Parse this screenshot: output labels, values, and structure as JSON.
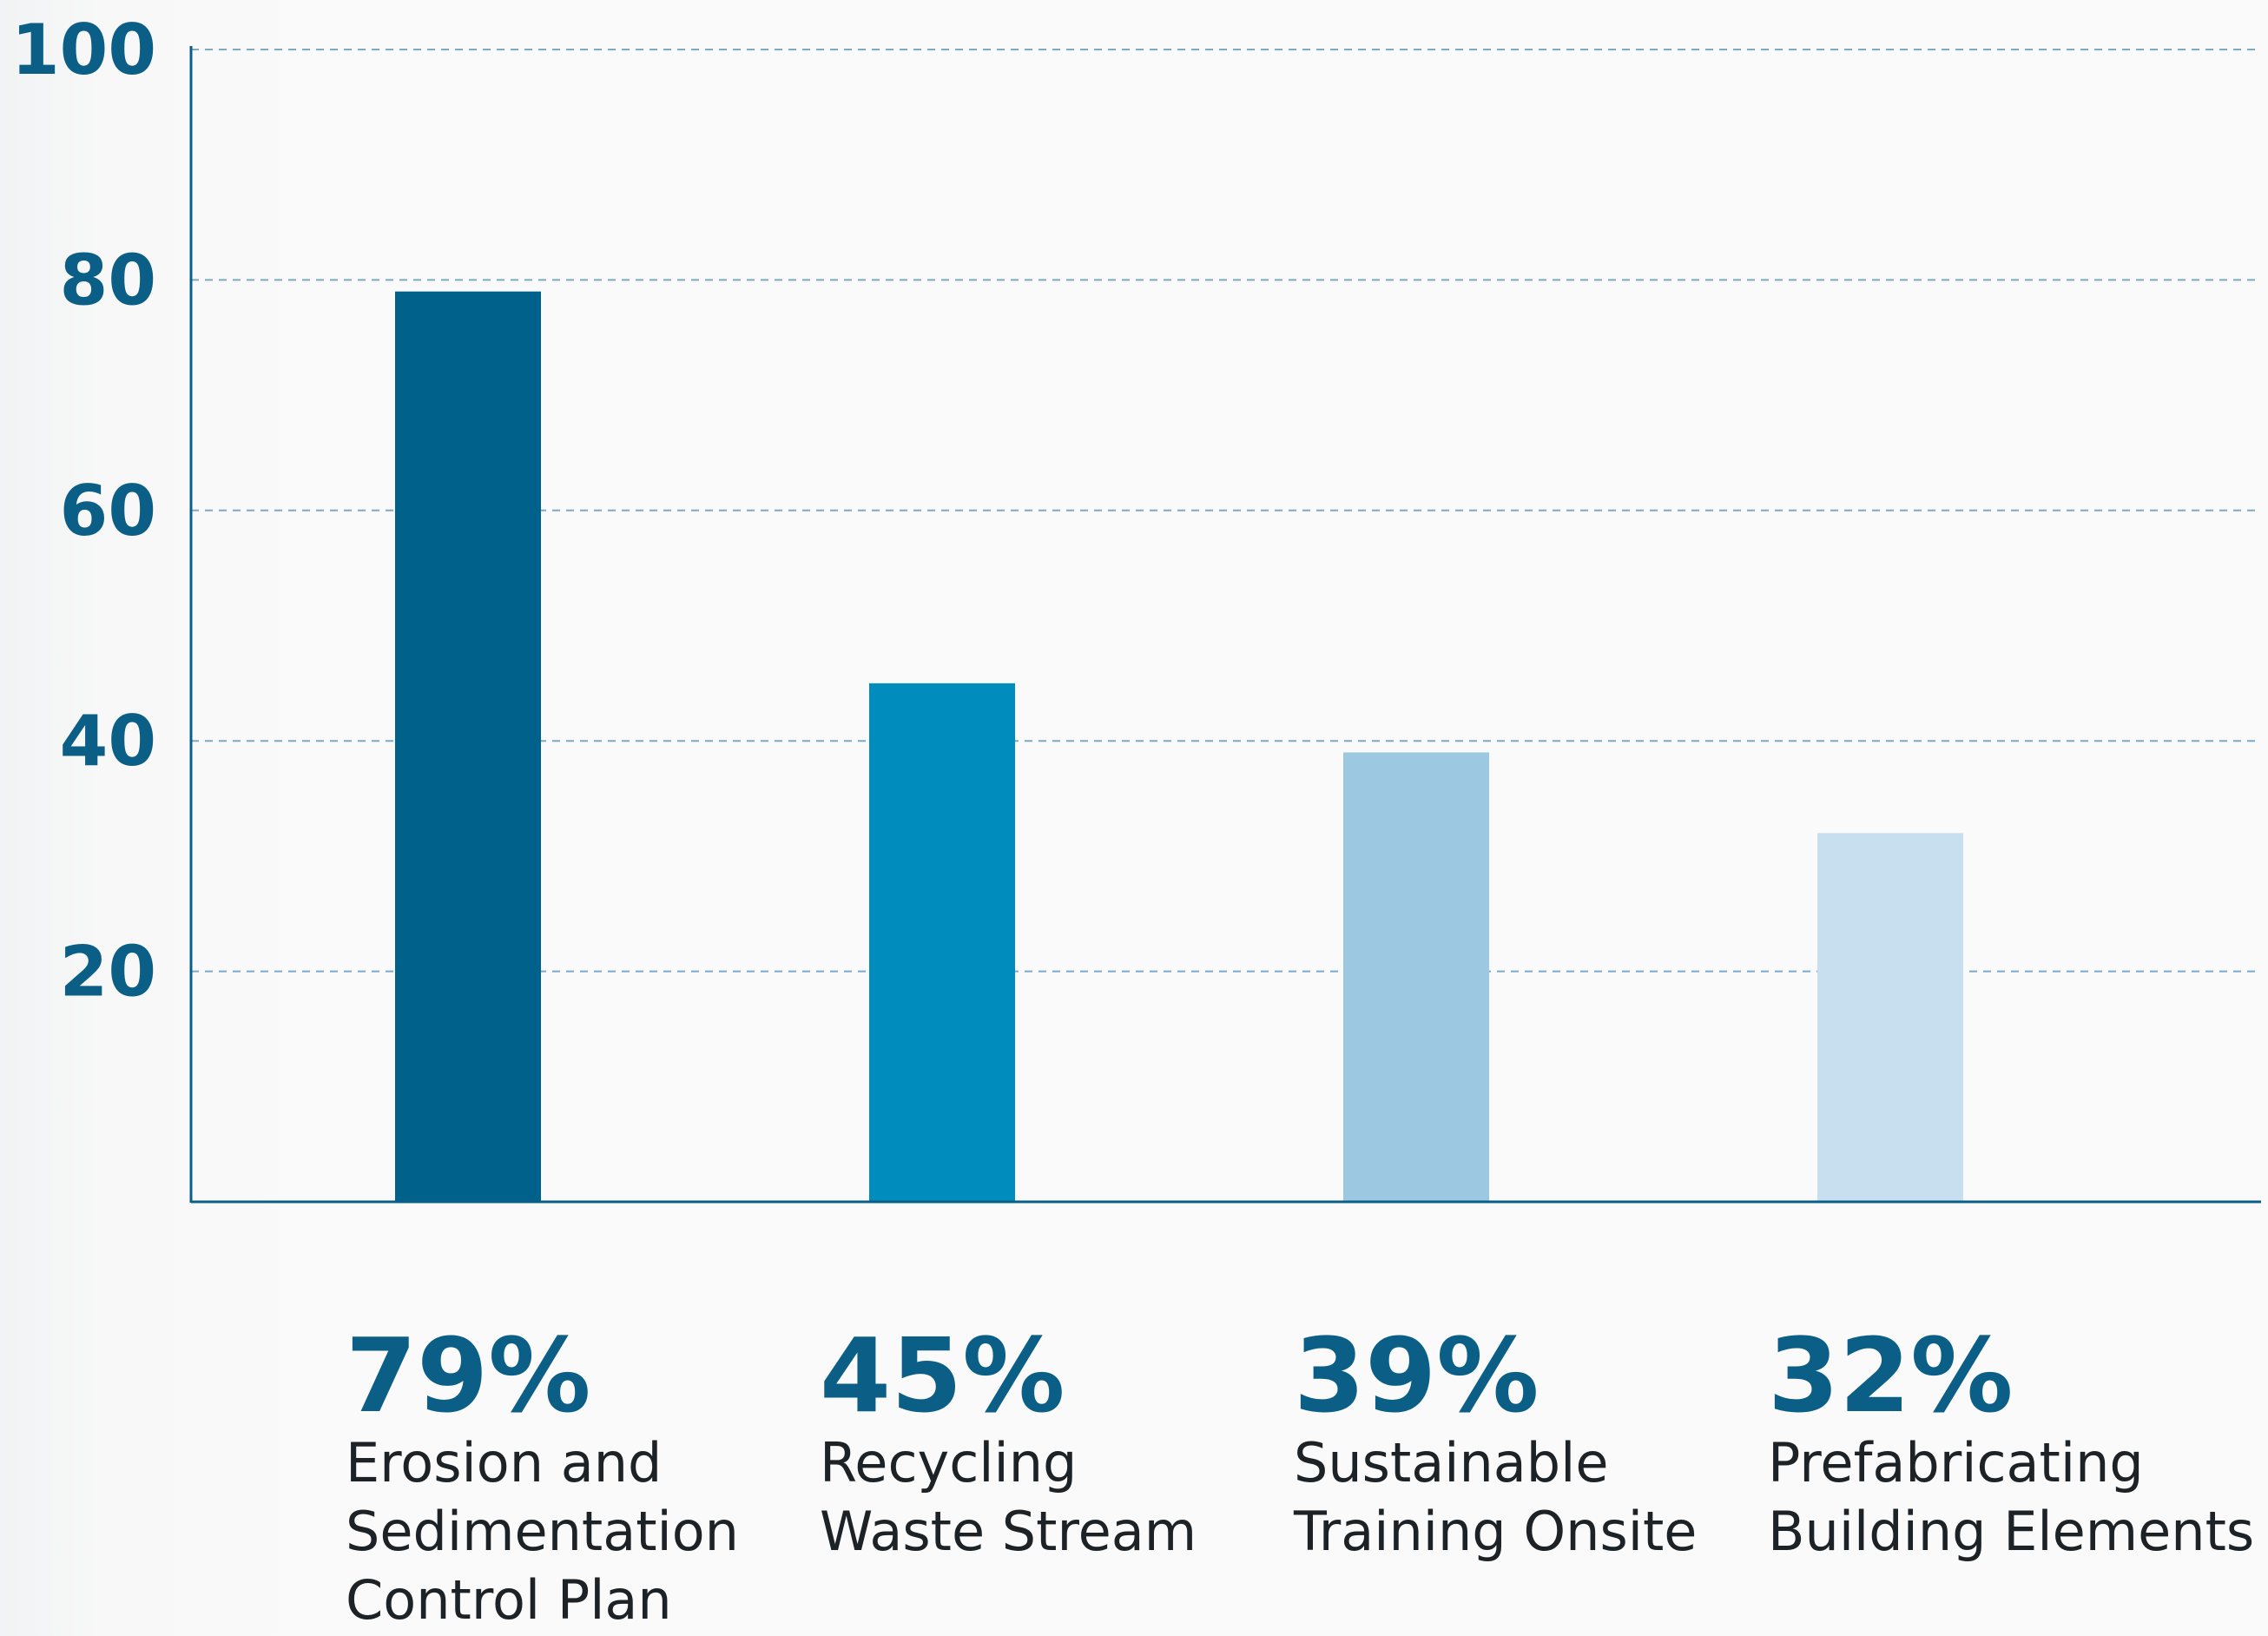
{
  "chart_data": {
    "type": "bar",
    "categories": [
      [
        "Erosion and",
        "Sedimentation",
        "Control Plan"
      ],
      [
        "Recycling",
        "Waste Stream"
      ],
      [
        "Sustainable",
        "Training Onsite"
      ],
      [
        "Prefabricating",
        "Building Elements"
      ]
    ],
    "values": [
      79,
      45,
      39,
      32
    ],
    "value_labels": [
      "79%",
      "45%",
      "39%",
      "32%"
    ],
    "bar_colors": [
      "#00628a",
      "#008dbd",
      "#9cc8e2",
      "#c8dfef"
    ],
    "ylim": [
      0,
      100
    ],
    "yticks": [
      20,
      40,
      60,
      80,
      100
    ],
    "ytick_labels": [
      "20",
      "40",
      "60",
      "80",
      "100"
    ],
    "grid": true,
    "legend": "none",
    "title": "",
    "xlabel": "",
    "ylabel": ""
  }
}
